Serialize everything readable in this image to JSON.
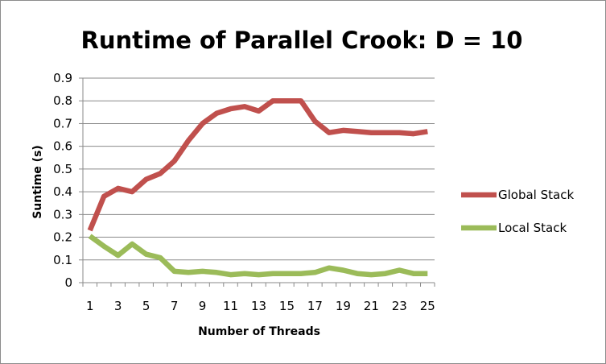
{
  "chart_data": {
    "type": "line",
    "title": "Runtime of Parallel Crook: D = 10",
    "xlabel": "Number of Threads",
    "ylabel": "Suntime (s)",
    "x": [
      1,
      2,
      3,
      4,
      5,
      6,
      7,
      8,
      9,
      10,
      11,
      12,
      13,
      14,
      15,
      16,
      17,
      18,
      19,
      20,
      21,
      22,
      23,
      24,
      25
    ],
    "x_tick_labels": [
      "1",
      "3",
      "5",
      "7",
      "9",
      "11",
      "13",
      "15",
      "17",
      "19",
      "21",
      "23",
      "25"
    ],
    "y_tick_labels": [
      "0",
      "0.1",
      "0.2",
      "0.3",
      "0.4",
      "0.5",
      "0.6",
      "0.7",
      "0.8",
      "0.9"
    ],
    "ylim": [
      0,
      0.9
    ],
    "grid": true,
    "legend_position": "right",
    "series": [
      {
        "name": "Global Stack",
        "color": "#c0504d",
        "values": [
          0.23,
          0.38,
          0.415,
          0.4,
          0.455,
          0.48,
          0.535,
          0.625,
          0.7,
          0.745,
          0.765,
          0.775,
          0.755,
          0.8,
          0.8,
          0.8,
          0.71,
          0.66,
          0.67,
          0.665,
          0.66,
          0.66,
          0.66,
          0.655,
          0.665
        ]
      },
      {
        "name": "Local Stack",
        "color": "#9bbb59",
        "values": [
          0.205,
          0.16,
          0.12,
          0.17,
          0.125,
          0.11,
          0.05,
          0.045,
          0.05,
          0.045,
          0.035,
          0.04,
          0.035,
          0.04,
          0.04,
          0.04,
          0.045,
          0.065,
          0.055,
          0.04,
          0.035,
          0.04,
          0.055,
          0.04,
          0.04
        ]
      }
    ]
  }
}
